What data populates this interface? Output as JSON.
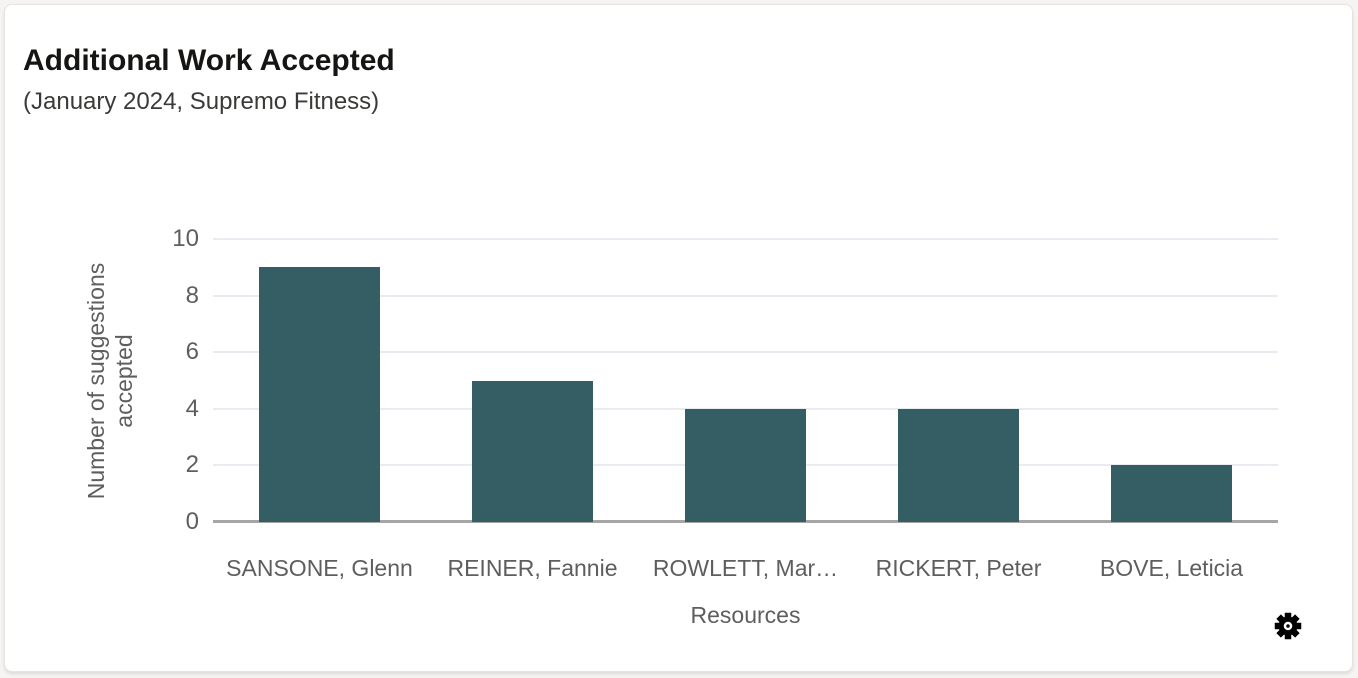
{
  "card": {
    "title": "Additional Work Accepted",
    "subtitle": "(January 2024, Supremo Fitness)"
  },
  "chart_data": {
    "type": "bar",
    "title": "Additional Work Accepted",
    "subtitle": "(January 2024, Supremo Fitness)",
    "categories": [
      "SANSONE, Glenn",
      "REINER, Fannie",
      "ROWLETT, Mar…",
      "RICKERT, Peter",
      "BOVE, Leticia"
    ],
    "values": [
      9,
      5,
      4,
      4,
      2
    ],
    "xlabel": "Resources",
    "ylabel": "Number of suggestions accepted",
    "ylim": [
      0,
      10
    ],
    "yticks": [
      0,
      2,
      4,
      6,
      8,
      10
    ],
    "grid": true,
    "legend": false
  },
  "colors": {
    "bar": "#355E64",
    "gridline": "#E8EBF0",
    "axis_line": "#A6A6A6",
    "tick_label": "#5E5E5E",
    "axis_title": "#5E5E5E",
    "title": "#161513",
    "subtitle": "#3A3A38",
    "card_bg": "#FFFFFF",
    "page_bg": "#F5F4F2",
    "card_border": "#E6E4E2",
    "settings_icon": "#000000"
  }
}
